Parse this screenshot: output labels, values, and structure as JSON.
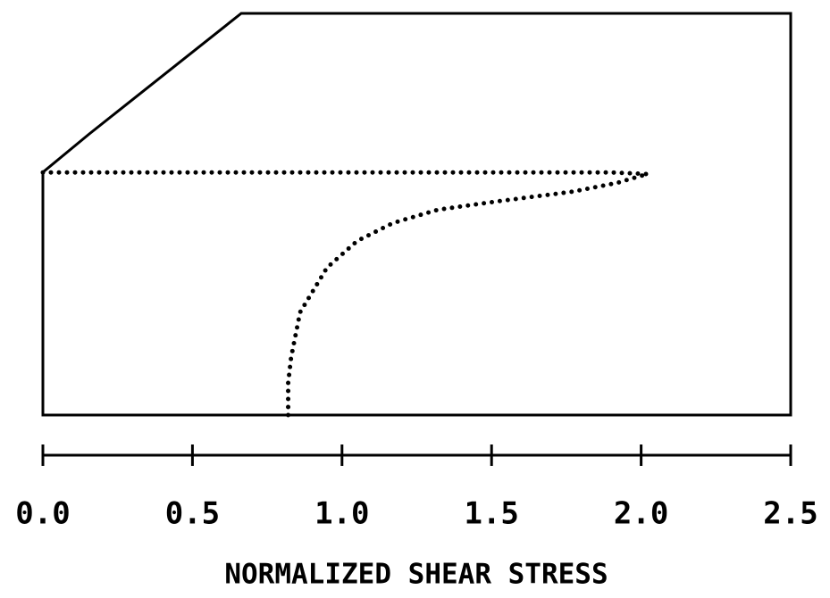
{
  "chart_data": {
    "type": "line",
    "xlabel": "NORMALIZED SHEAR STRESS",
    "xlim": [
      0,
      2.5
    ],
    "xticks": [
      {
        "value": 0,
        "label": "0.0"
      },
      {
        "value": 0.5,
        "label": "0.5"
      },
      {
        "value": 1,
        "label": "1.0"
      },
      {
        "value": 1.5,
        "label": "1.5"
      },
      {
        "value": 2,
        "label": "2.0"
      },
      {
        "value": 2.5,
        "label": "2.5"
      }
    ],
    "ylim": [
      0,
      1
    ],
    "series": [
      {
        "color": "#000000",
        "x": [
          0,
          0.5,
          1.0,
          1.5,
          1.9,
          2.02
        ],
        "values": [
          0.604,
          0.604,
          0.604,
          0.604,
          0.604,
          0.6
        ]
      },
      {
        "color": "#000000",
        "x": [
          0.82,
          0.82,
          0.83,
          0.86,
          0.95,
          1.05,
          1.17,
          1.32,
          1.53,
          1.77,
          1.92,
          2.02
        ],
        "values": [
          0.0,
          0.08,
          0.144,
          0.256,
          0.367,
          0.433,
          0.478,
          0.511,
          0.533,
          0.556,
          0.578,
          0.6
        ]
      }
    ]
  }
}
